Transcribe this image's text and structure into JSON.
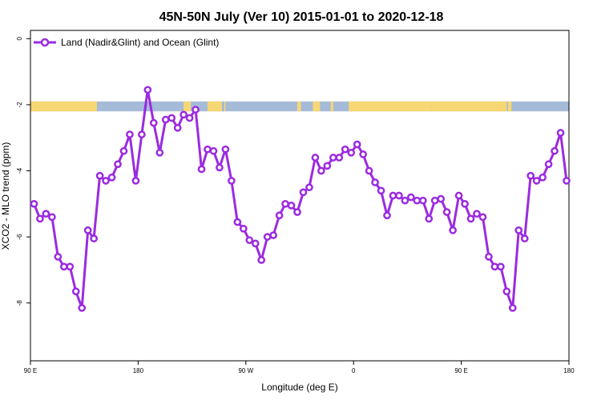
{
  "chart_data": {
    "type": "line",
    "title": "45N-50N July (Ver 10)   2015-01-01 to 2020-12-18",
    "xlabel": "Longitude (deg E)",
    "ylabel": "XCO2 - MLO trend (ppm)",
    "xlim": [
      90,
      540
    ],
    "ylim": [
      -9.75,
      0.25
    ],
    "x_ticks": [
      {
        "value": 90,
        "label": "90 E"
      },
      {
        "value": 180,
        "label": "180"
      },
      {
        "value": 270,
        "label": "90 W"
      },
      {
        "value": 360,
        "label": "0"
      },
      {
        "value": 450,
        "label": "90 E"
      },
      {
        "value": 540,
        "label": "180"
      }
    ],
    "y_ticks": [
      {
        "value": 0,
        "label": "0"
      },
      {
        "value": -2,
        "label": "-2"
      },
      {
        "value": -4,
        "label": "-4"
      },
      {
        "value": -6,
        "label": "-6"
      },
      {
        "value": -8,
        "label": "-8"
      }
    ],
    "legend_position": "top-left",
    "land_ocean_band": {
      "y_range": [
        -2.2,
        -1.9
      ],
      "land_color": "#f7d774",
      "ocean_color": "#a6bbd8",
      "land_segments": [
        [
          90,
          144
        ],
        [
          142,
          145.5
        ],
        [
          218,
          224
        ],
        [
          238,
          250
        ],
        [
          252,
          253
        ],
        [
          313,
          316
        ],
        [
          326,
          332
        ],
        [
          341,
          343
        ],
        [
          356,
          425
        ],
        [
          425,
          488
        ],
        [
          489,
          492
        ]
      ]
    },
    "series": [
      {
        "name": "Land (Nadir&Glint) and Ocean (Glint)",
        "color": "#9b2be0",
        "x": [
          93,
          98,
          103,
          108,
          113,
          118,
          123,
          128,
          133,
          138,
          143,
          148,
          153,
          158,
          163,
          168,
          173,
          178,
          183,
          188,
          193,
          198,
          203,
          208,
          213,
          218,
          223,
          228,
          233,
          238,
          243,
          248,
          253,
          258,
          263,
          268,
          273,
          278,
          283,
          288,
          293,
          298,
          303,
          308,
          313,
          318,
          323,
          328,
          333,
          338,
          343,
          348,
          353,
          358,
          363,
          368,
          373,
          378,
          383,
          388,
          393,
          398,
          403,
          408,
          413,
          418,
          423,
          428,
          433,
          438,
          443,
          448,
          453,
          458,
          463,
          468,
          473,
          478,
          483,
          488,
          493,
          498,
          503,
          508,
          513,
          518,
          523,
          528,
          533,
          538
        ],
        "y": [
          -5.0,
          -5.45,
          -5.3,
          -5.4,
          -6.6,
          -6.9,
          -6.9,
          -7.65,
          -8.15,
          -5.8,
          -6.05,
          -4.15,
          -4.3,
          -4.2,
          -3.8,
          -3.4,
          -2.9,
          -4.3,
          -2.9,
          -1.55,
          -2.55,
          -3.45,
          -2.45,
          -2.4,
          -2.7,
          -2.3,
          -2.4,
          -2.15,
          -3.95,
          -3.35,
          -3.4,
          -3.9,
          -3.35,
          -4.3,
          -5.55,
          -5.75,
          -6.1,
          -6.2,
          -6.7,
          -6.0,
          -5.95,
          -5.35,
          -5.0,
          -5.05,
          -5.25,
          -4.65,
          -4.5,
          -3.6,
          -4.0,
          -3.85,
          -3.6,
          -3.6,
          -3.35,
          -3.45,
          -3.2,
          -3.5,
          -4.0,
          -4.35,
          -4.6,
          -5.35,
          -4.75,
          -4.75,
          -4.9,
          -4.8,
          -4.9,
          -4.9,
          -5.45,
          -4.9,
          -4.85,
          -5.25,
          -5.8,
          -4.75,
          -5.0,
          -5.45,
          -5.3,
          -5.4,
          -6.6,
          -6.9,
          -6.9,
          -7.65,
          -8.15,
          -5.8,
          -6.05,
          -4.15,
          -4.3,
          -4.2,
          -3.8,
          -3.4,
          -2.85,
          -4.3
        ]
      }
    ]
  }
}
